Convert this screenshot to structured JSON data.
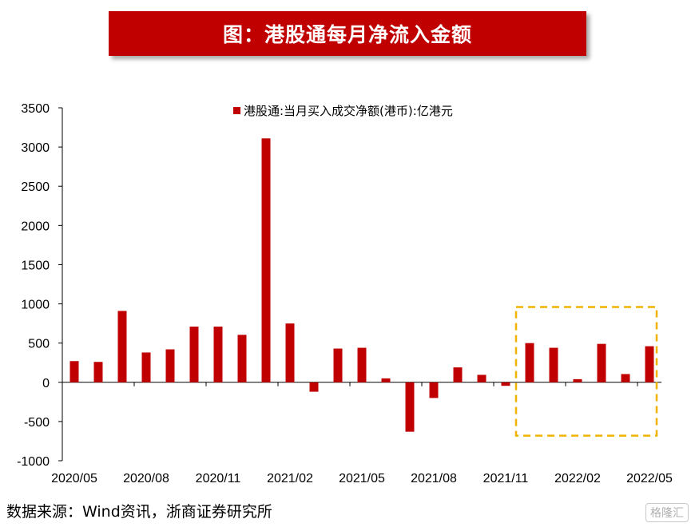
{
  "header": {
    "title": "图：港股通每月净流入金额"
  },
  "footer": {
    "source": "数据来源：Wind资讯，浙商证券研究所",
    "watermark": "格隆汇"
  },
  "colors": {
    "bar": "#c00000",
    "highlight_box": "#f0b400",
    "banner": "#c00000"
  },
  "chart_data": {
    "type": "bar",
    "title": "",
    "xlabel": "",
    "ylabel": "",
    "ylim": [
      -1000,
      3500
    ],
    "yticks": [
      -1000,
      -500,
      0,
      500,
      1000,
      1500,
      2000,
      2500,
      3000,
      3500
    ],
    "grid": false,
    "legend_position": "top-center",
    "categories": [
      "2020/05",
      "2020/06",
      "2020/07",
      "2020/08",
      "2020/09",
      "2020/10",
      "2020/11",
      "2020/12",
      "2021/01",
      "2021/02",
      "2021/03",
      "2021/04",
      "2021/05",
      "2021/06",
      "2021/07",
      "2021/08",
      "2021/09",
      "2021/10",
      "2021/11",
      "2021/12",
      "2022/01",
      "2022/02",
      "2022/03",
      "2022/04",
      "2022/05"
    ],
    "x_tick_labels": [
      "2020/05",
      "2020/08",
      "2020/11",
      "2021/02",
      "2021/05",
      "2021/08",
      "2021/11",
      "2022/02",
      "2022/05"
    ],
    "series": [
      {
        "name": "港股通:当月买入成交净额(港币):亿港元",
        "values": [
          270,
          260,
          910,
          380,
          420,
          710,
          710,
          605,
          3110,
          750,
          -120,
          430,
          440,
          50,
          -630,
          -200,
          190,
          95,
          -45,
          500,
          440,
          40,
          490,
          105,
          460
        ]
      }
    ],
    "highlight_range": [
      "2021/12",
      "2022/05"
    ]
  }
}
